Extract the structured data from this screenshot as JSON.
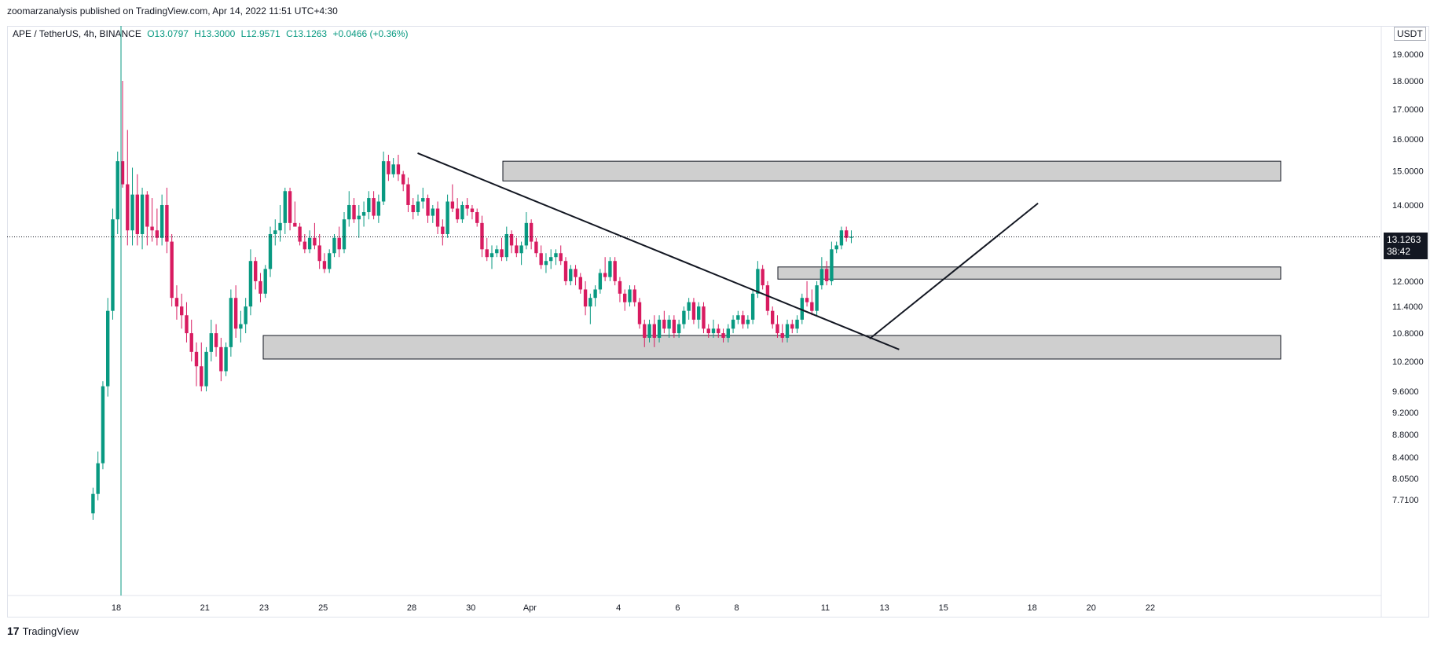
{
  "header": {
    "publish_line": "zoomarzanalysis published on TradingView.com, Apr 14, 2022 11:51 UTC+4:30"
  },
  "symbol": {
    "name": "APE / TetherUS, 4h, BINANCE",
    "open": "O13.0797",
    "high": "H13.3000",
    "low": "L12.9571",
    "close": "C13.1263",
    "change": "+0.0466 (+0.36%)"
  },
  "currency_label": "USDT",
  "last_price": {
    "value": "13.1263",
    "countdown": "38:42"
  },
  "footer": {
    "brand": "TradingView",
    "logo_glyph": "17"
  },
  "colors": {
    "up": "#089981",
    "down": "#d81b60",
    "zone_fill": "#cfcfcf",
    "zone_border": "#131722",
    "line": "#131722"
  },
  "chart_data": {
    "type": "candlestick",
    "title": "",
    "xlabel": "",
    "ylabel": "",
    "ylim": [
      7.5,
      20.0
    ],
    "y_scale": "log",
    "grid": false,
    "y_ticks": [
      "19.0000",
      "18.0000",
      "17.0000",
      "16.0000",
      "15.0000",
      "14.0000",
      "12.0000",
      "11.4000",
      "10.8000",
      "10.2000",
      "9.6000",
      "9.2000",
      "8.8000",
      "8.4000",
      "8.0500",
      "7.7100"
    ],
    "x_ticks": [
      {
        "label": "18",
        "day": 18
      },
      {
        "label": "21",
        "day": 21
      },
      {
        "label": "23",
        "day": 23
      },
      {
        "label": "25",
        "day": 25
      },
      {
        "label": "28",
        "day": 28
      },
      {
        "label": "30",
        "day": 30
      },
      {
        "label": "Apr",
        "day": 32
      },
      {
        "label": "4",
        "day": 35
      },
      {
        "label": "6",
        "day": 37
      },
      {
        "label": "8",
        "day": 39
      },
      {
        "label": "11",
        "day": 42
      },
      {
        "label": "13",
        "day": 44
      },
      {
        "label": "15",
        "day": 46
      },
      {
        "label": "18",
        "day": 49
      },
      {
        "label": "20",
        "day": 51
      },
      {
        "label": "22",
        "day": 53
      }
    ],
    "candles": [
      [
        7.5,
        7.9,
        7.4,
        7.8
      ],
      [
        7.8,
        8.5,
        7.7,
        8.3
      ],
      [
        8.3,
        9.8,
        8.2,
        9.7
      ],
      [
        9.7,
        11.6,
        9.5,
        11.3
      ],
      [
        11.3,
        13.9,
        11.1,
        13.6
      ],
      [
        13.6,
        15.6,
        13.2,
        15.3
      ],
      [
        15.3,
        18.0,
        14.5,
        14.6
      ],
      [
        14.6,
        16.3,
        12.9,
        13.3
      ],
      [
        13.3,
        15.1,
        12.9,
        14.3
      ],
      [
        14.3,
        14.9,
        12.9,
        13.2
      ],
      [
        13.2,
        14.5,
        12.8,
        14.3
      ],
      [
        14.3,
        14.4,
        12.9,
        13.4
      ],
      [
        13.4,
        14.2,
        13.0,
        13.3
      ],
      [
        13.3,
        13.9,
        12.9,
        13.1
      ],
      [
        13.1,
        14.3,
        12.9,
        14.0
      ],
      [
        14.0,
        14.5,
        12.7,
        13.0
      ],
      [
        13.0,
        13.2,
        11.4,
        11.6
      ],
      [
        11.6,
        11.9,
        11.1,
        11.4
      ],
      [
        11.4,
        11.7,
        10.9,
        11.2
      ],
      [
        11.2,
        11.5,
        10.6,
        10.8
      ],
      [
        10.8,
        11.1,
        10.2,
        10.4
      ],
      [
        10.4,
        10.6,
        9.7,
        10.1
      ],
      [
        10.1,
        10.6,
        9.6,
        9.7
      ],
      [
        9.7,
        10.5,
        9.6,
        10.4
      ],
      [
        10.4,
        11.1,
        10.2,
        10.8
      ],
      [
        10.8,
        11.0,
        10.3,
        10.5
      ],
      [
        10.5,
        10.7,
        9.8,
        10.0
      ],
      [
        10.0,
        10.6,
        9.9,
        10.5
      ],
      [
        10.5,
        11.8,
        10.3,
        11.6
      ],
      [
        11.6,
        11.9,
        10.7,
        10.9
      ],
      [
        10.9,
        11.3,
        10.6,
        11.0
      ],
      [
        11.0,
        11.6,
        10.8,
        11.4
      ],
      [
        11.4,
        12.8,
        11.2,
        12.5
      ],
      [
        12.5,
        12.6,
        11.8,
        12.0
      ],
      [
        12.0,
        12.2,
        11.5,
        11.7
      ],
      [
        11.7,
        12.4,
        11.6,
        12.3
      ],
      [
        12.3,
        13.4,
        12.1,
        13.2
      ],
      [
        13.2,
        13.6,
        12.9,
        13.3
      ],
      [
        13.3,
        14.0,
        13.0,
        13.5
      ],
      [
        13.5,
        14.5,
        13.2,
        14.4
      ],
      [
        14.4,
        14.5,
        13.3,
        13.5
      ],
      [
        13.5,
        14.1,
        13.4,
        13.4
      ],
      [
        13.4,
        13.5,
        12.9,
        13.0
      ],
      [
        13.0,
        13.2,
        12.7,
        12.8
      ],
      [
        12.8,
        13.3,
        12.7,
        13.1
      ],
      [
        13.1,
        13.5,
        12.8,
        12.9
      ],
      [
        12.9,
        13.2,
        12.3,
        12.5
      ],
      [
        12.5,
        12.7,
        12.2,
        12.3
      ],
      [
        12.3,
        12.8,
        12.2,
        12.7
      ],
      [
        12.7,
        13.2,
        12.6,
        13.1
      ],
      [
        13.1,
        13.4,
        12.6,
        12.8
      ],
      [
        12.8,
        13.8,
        12.7,
        13.6
      ],
      [
        13.6,
        14.4,
        13.4,
        14.0
      ],
      [
        14.0,
        14.2,
        13.5,
        13.6
      ],
      [
        13.6,
        14.0,
        13.1,
        13.7
      ],
      [
        13.7,
        14.1,
        13.4,
        13.8
      ],
      [
        13.8,
        14.4,
        13.6,
        14.2
      ],
      [
        14.2,
        14.4,
        13.6,
        13.7
      ],
      [
        13.7,
        14.3,
        13.5,
        14.1
      ],
      [
        14.1,
        15.6,
        14.0,
        15.3
      ],
      [
        15.3,
        15.5,
        14.7,
        14.9
      ],
      [
        14.9,
        15.4,
        14.8,
        15.2
      ],
      [
        15.2,
        15.5,
        14.7,
        14.9
      ],
      [
        14.9,
        15.0,
        14.4,
        14.6
      ],
      [
        14.6,
        14.8,
        13.8,
        14.0
      ],
      [
        14.0,
        14.2,
        13.6,
        13.8
      ],
      [
        13.8,
        14.3,
        13.7,
        14.1
      ],
      [
        14.1,
        14.5,
        13.9,
        14.2
      ],
      [
        14.2,
        14.3,
        13.5,
        13.7
      ],
      [
        13.7,
        14.0,
        13.5,
        13.9
      ],
      [
        13.9,
        14.1,
        13.2,
        13.4
      ],
      [
        13.4,
        13.6,
        12.9,
        13.2
      ],
      [
        13.2,
        14.3,
        13.1,
        14.1
      ],
      [
        14.1,
        14.6,
        13.8,
        13.9
      ],
      [
        13.9,
        14.2,
        13.5,
        13.6
      ],
      [
        13.6,
        14.1,
        13.5,
        14.0
      ],
      [
        14.0,
        14.2,
        13.7,
        13.9
      ],
      [
        13.9,
        14.0,
        13.6,
        13.8
      ],
      [
        13.8,
        13.9,
        13.4,
        13.5
      ],
      [
        13.5,
        13.7,
        12.6,
        12.8
      ],
      [
        12.8,
        13.1,
        12.5,
        12.6
      ],
      [
        12.6,
        12.9,
        12.3,
        12.7
      ],
      [
        12.7,
        12.9,
        12.6,
        12.8
      ],
      [
        12.8,
        13.1,
        12.5,
        12.6
      ],
      [
        12.6,
        13.4,
        12.5,
        13.2
      ],
      [
        13.2,
        13.3,
        12.7,
        12.9
      ],
      [
        12.9,
        13.1,
        12.6,
        12.7
      ],
      [
        12.7,
        13.0,
        12.4,
        12.9
      ],
      [
        12.9,
        13.8,
        12.8,
        13.5
      ],
      [
        13.5,
        13.6,
        12.8,
        13.0
      ],
      [
        13.0,
        13.1,
        12.6,
        12.7
      ],
      [
        12.7,
        12.9,
        12.3,
        12.4
      ],
      [
        12.4,
        12.7,
        12.2,
        12.5
      ],
      [
        12.5,
        12.8,
        12.3,
        12.6
      ],
      [
        12.6,
        12.8,
        12.4,
        12.7
      ],
      [
        12.7,
        12.9,
        12.4,
        12.5
      ],
      [
        12.5,
        12.6,
        11.9,
        12.0
      ],
      [
        12.0,
        12.4,
        11.9,
        12.3
      ],
      [
        12.3,
        12.4,
        11.9,
        12.1
      ],
      [
        12.1,
        12.2,
        11.7,
        11.8
      ],
      [
        11.8,
        12.0,
        11.2,
        11.4
      ],
      [
        11.4,
        11.7,
        11.0,
        11.6
      ],
      [
        11.6,
        11.9,
        11.4,
        11.8
      ],
      [
        11.8,
        12.3,
        11.7,
        12.2
      ],
      [
        12.2,
        12.6,
        12.0,
        12.1
      ],
      [
        12.1,
        12.6,
        12.0,
        12.5
      ],
      [
        12.5,
        12.6,
        11.9,
        12.0
      ],
      [
        12.0,
        12.1,
        11.5,
        11.7
      ],
      [
        11.7,
        11.8,
        11.3,
        11.5
      ],
      [
        11.5,
        11.9,
        11.4,
        11.8
      ],
      [
        11.8,
        11.9,
        11.4,
        11.5
      ],
      [
        11.5,
        11.6,
        10.9,
        11.0
      ],
      [
        11.0,
        11.1,
        10.5,
        10.7
      ],
      [
        10.7,
        11.1,
        10.6,
        11.0
      ],
      [
        11.0,
        11.2,
        10.5,
        10.7
      ],
      [
        10.7,
        11.2,
        10.6,
        11.1
      ],
      [
        11.1,
        11.3,
        10.8,
        10.9
      ],
      [
        10.9,
        11.2,
        10.7,
        11.1
      ],
      [
        11.1,
        11.2,
        10.7,
        10.8
      ],
      [
        10.8,
        11.1,
        10.7,
        11.0
      ],
      [
        11.0,
        11.4,
        10.9,
        11.3
      ],
      [
        11.3,
        11.6,
        11.1,
        11.5
      ],
      [
        11.5,
        11.6,
        11.0,
        11.1
      ],
      [
        11.1,
        11.5,
        10.9,
        11.4
      ],
      [
        11.4,
        11.5,
        10.8,
        10.9
      ],
      [
        10.9,
        11.0,
        10.7,
        10.8
      ],
      [
        10.8,
        11.1,
        10.7,
        10.9
      ],
      [
        10.9,
        11.0,
        10.7,
        10.8
      ],
      [
        10.8,
        10.9,
        10.6,
        10.7
      ],
      [
        10.7,
        11.0,
        10.6,
        10.9
      ],
      [
        10.9,
        11.2,
        10.8,
        11.1
      ],
      [
        11.1,
        11.3,
        11.0,
        11.2
      ],
      [
        11.2,
        11.3,
        10.9,
        11.0
      ],
      [
        11.0,
        11.2,
        10.9,
        11.1
      ],
      [
        11.1,
        11.8,
        11.0,
        11.7
      ],
      [
        11.7,
        12.5,
        11.6,
        12.3
      ],
      [
        12.3,
        12.4,
        11.8,
        11.9
      ],
      [
        11.9,
        12.0,
        11.2,
        11.3
      ],
      [
        11.3,
        11.4,
        10.9,
        11.0
      ],
      [
        11.0,
        11.2,
        10.7,
        10.8
      ],
      [
        10.8,
        11.0,
        10.6,
        10.7
      ],
      [
        10.7,
        11.1,
        10.6,
        11.0
      ],
      [
        11.0,
        11.1,
        10.8,
        10.9
      ],
      [
        10.9,
        11.2,
        10.8,
        11.1
      ],
      [
        11.1,
        11.7,
        11.0,
        11.6
      ],
      [
        11.6,
        12.0,
        11.4,
        11.5
      ],
      [
        11.5,
        11.8,
        11.2,
        11.3
      ],
      [
        11.3,
        12.0,
        11.2,
        11.9
      ],
      [
        11.9,
        12.6,
        11.8,
        12.3
      ],
      [
        12.3,
        12.5,
        11.9,
        12.0
      ],
      [
        12.0,
        13.0,
        11.9,
        12.8
      ],
      [
        12.8,
        13.0,
        12.7,
        12.9
      ],
      [
        12.9,
        13.4,
        12.8,
        13.3
      ],
      [
        13.3,
        13.4,
        13.0,
        13.1
      ],
      [
        13.1,
        13.3,
        12.96,
        13.13
      ]
    ],
    "zones": [
      {
        "from": 14.7,
        "to": 15.3
      },
      {
        "from": 12.05,
        "to": 12.35
      },
      {
        "from": 10.25,
        "to": 10.75
      }
    ],
    "lines": [
      {
        "x1": 28.2,
        "y1": 15.55,
        "x2": 44.5,
        "y2": 10.45
      },
      {
        "x1": 43.5,
        "y1": 10.68,
        "x2": 49.2,
        "y2": 14.05
      }
    ],
    "start_day": 17.0,
    "candles_per_day": 6,
    "last_price_line": 13.1263
  }
}
